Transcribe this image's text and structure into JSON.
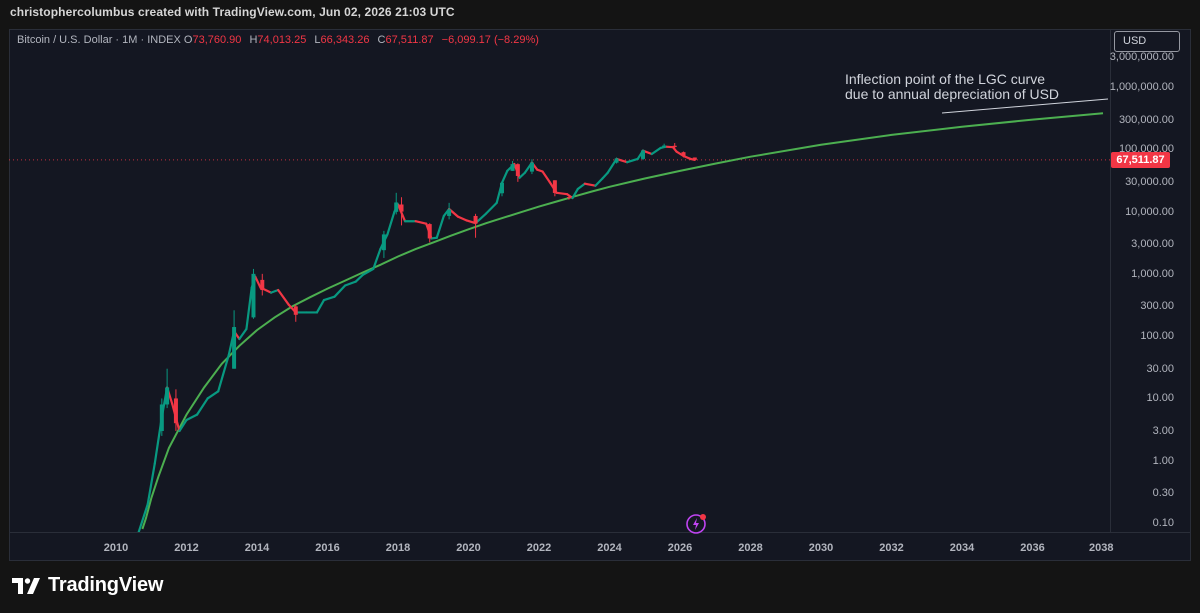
{
  "header": {
    "text": "christophercolumbus created with TradingView.com, Jun 02, 2026 21:03 UTC"
  },
  "legend": {
    "symbol": "Bitcoin / U.S. Dollar · 1M · INDEX",
    "o_label": "O",
    "o_value": "73,760.90",
    "h_label": "H",
    "h_value": "74,013.25",
    "l_label": "L",
    "l_value": "66,343.26",
    "c_label": "C",
    "c_value": "67,511.87",
    "change": "−6,099.17 (−8.29%)"
  },
  "currency_button": "USD",
  "last_price": {
    "label": "67,511.87",
    "value": 67511.87
  },
  "annotation": {
    "line1": "Inflection point of the LGC curve",
    "line2": "due to annual depreciation of USD"
  },
  "footer": {
    "brand": "TradingView"
  },
  "colors": {
    "up": "#089981",
    "down": "#f23645",
    "curve": "#4caf50",
    "background": "#141722",
    "price_line": "#f23645"
  },
  "icons": {
    "lightning": "lightning-icon",
    "logo": "tradingview-logo-icon"
  },
  "chart_data": {
    "type": "line",
    "scale": "log",
    "ylim": [
      0.08,
      6000000
    ],
    "xlim": [
      2008.1,
      2038.0
    ],
    "yticks": [
      {
        "label": "3,000,000.00",
        "value": 3000000
      },
      {
        "label": "1,000,000.00",
        "value": 1000000
      },
      {
        "label": "300,000.00",
        "value": 300000
      },
      {
        "label": "100,000.00",
        "value": 100000
      },
      {
        "label": "30,000.00",
        "value": 30000
      },
      {
        "label": "10,000.00",
        "value": 10000
      },
      {
        "label": "3,000.00",
        "value": 3000
      },
      {
        "label": "1,000.00",
        "value": 1000
      },
      {
        "label": "300.00",
        "value": 300
      },
      {
        "label": "100.00",
        "value": 100
      },
      {
        "label": "30.00",
        "value": 30
      },
      {
        "label": "10.00",
        "value": 10
      },
      {
        "label": "3.00",
        "value": 3
      },
      {
        "label": "1.00",
        "value": 1
      },
      {
        "label": "0.30",
        "value": 0.3
      },
      {
        "label": "0.10",
        "value": 0.1
      }
    ],
    "xticks": [
      {
        "label": "2010",
        "value": 2010
      },
      {
        "label": "2012",
        "value": 2012
      },
      {
        "label": "2014",
        "value": 2014
      },
      {
        "label": "2016",
        "value": 2016
      },
      {
        "label": "2018",
        "value": 2018
      },
      {
        "label": "2020",
        "value": 2020
      },
      {
        "label": "2022",
        "value": 2022
      },
      {
        "label": "2024",
        "value": 2024
      },
      {
        "label": "2026",
        "value": 2026
      },
      {
        "label": "2028",
        "value": 2028
      },
      {
        "label": "2030",
        "value": 2030
      },
      {
        "label": "2032",
        "value": 2032
      },
      {
        "label": "2034",
        "value": 2034
      },
      {
        "label": "2036",
        "value": 2036
      },
      {
        "label": "2038",
        "value": 2038
      }
    ],
    "price_path": [
      [
        2010.6,
        0.06
      ],
      [
        2010.9,
        0.2
      ],
      [
        2011.1,
        0.9
      ],
      [
        2011.3,
        5
      ],
      [
        2011.45,
        15
      ],
      [
        2011.6,
        8
      ],
      [
        2011.8,
        3
      ],
      [
        2012.0,
        4.5
      ],
      [
        2012.3,
        5.5
      ],
      [
        2012.6,
        10
      ],
      [
        2012.9,
        13
      ],
      [
        2013.2,
        50
      ],
      [
        2013.35,
        120
      ],
      [
        2013.5,
        90
      ],
      [
        2013.7,
        130
      ],
      [
        2013.85,
        600
      ],
      [
        2013.95,
        900
      ],
      [
        2014.1,
        600
      ],
      [
        2014.4,
        500
      ],
      [
        2014.6,
        550
      ],
      [
        2014.9,
        320
      ],
      [
        2015.1,
        240
      ],
      [
        2015.4,
        240
      ],
      [
        2015.7,
        240
      ],
      [
        2015.9,
        380
      ],
      [
        2016.2,
        430
      ],
      [
        2016.5,
        650
      ],
      [
        2016.8,
        750
      ],
      [
        2017.0,
        960
      ],
      [
        2017.3,
        1200
      ],
      [
        2017.5,
        2500
      ],
      [
        2017.7,
        4300
      ],
      [
        2017.9,
        10000
      ],
      [
        2018.0,
        13000
      ],
      [
        2018.2,
        7000
      ],
      [
        2018.5,
        7000
      ],
      [
        2018.8,
        6400
      ],
      [
        2018.95,
        3700
      ],
      [
        2019.1,
        3800
      ],
      [
        2019.3,
        8500
      ],
      [
        2019.45,
        11000
      ],
      [
        2019.7,
        8300
      ],
      [
        2019.95,
        7200
      ],
      [
        2020.2,
        6500
      ],
      [
        2020.5,
        9300
      ],
      [
        2020.8,
        13800
      ],
      [
        2020.95,
        29000
      ],
      [
        2021.1,
        45000
      ],
      [
        2021.3,
        58000
      ],
      [
        2021.45,
        35000
      ],
      [
        2021.6,
        42000
      ],
      [
        2021.8,
        61000
      ],
      [
        2021.95,
        47000
      ],
      [
        2022.1,
        44000
      ],
      [
        2022.3,
        30000
      ],
      [
        2022.5,
        20000
      ],
      [
        2022.8,
        19000
      ],
      [
        2022.95,
        16500
      ],
      [
        2023.1,
        23000
      ],
      [
        2023.3,
        28000
      ],
      [
        2023.6,
        26000
      ],
      [
        2023.8,
        34000
      ],
      [
        2023.95,
        42000
      ],
      [
        2024.2,
        70000
      ],
      [
        2024.5,
        62000
      ],
      [
        2024.8,
        70000
      ],
      [
        2024.95,
        95000
      ],
      [
        2025.2,
        84000
      ],
      [
        2025.45,
        105000
      ],
      [
        2025.6,
        110000
      ],
      [
        2025.8,
        108000
      ],
      [
        2025.9,
        92000
      ],
      [
        2026.1,
        78000
      ],
      [
        2026.3,
        70000
      ],
      [
        2026.42,
        67511.87
      ]
    ],
    "lgc_curve": [
      [
        2010.75,
        0.08
      ],
      [
        2010.85,
        0.12
      ],
      [
        2011.0,
        0.25
      ],
      [
        2011.2,
        0.55
      ],
      [
        2011.5,
        1.6
      ],
      [
        2012.0,
        5.5
      ],
      [
        2012.5,
        15
      ],
      [
        2013.0,
        36
      ],
      [
        2013.5,
        70
      ],
      [
        2014.0,
        125
      ],
      [
        2014.5,
        200
      ],
      [
        2015.0,
        300
      ],
      [
        2015.5,
        420
      ],
      [
        2016.0,
        580
      ],
      [
        2016.5,
        780
      ],
      [
        2017.0,
        1050
      ],
      [
        2017.5,
        1400
      ],
      [
        2018.0,
        1900
      ],
      [
        2018.5,
        2500
      ],
      [
        2019.0,
        3200
      ],
      [
        2019.5,
        4100
      ],
      [
        2020.0,
        5200
      ],
      [
        2020.5,
        6500
      ],
      [
        2021.0,
        8000
      ],
      [
        2021.5,
        9800
      ],
      [
        2022.0,
        12000
      ],
      [
        2022.5,
        14500
      ],
      [
        2023.0,
        17500
      ],
      [
        2023.5,
        21000
      ],
      [
        2024.0,
        25000
      ],
      [
        2025.0,
        34000
      ],
      [
        2026.0,
        45000
      ],
      [
        2027.0,
        59000
      ],
      [
        2028.0,
        76000
      ],
      [
        2030.0,
        118000
      ],
      [
        2032.0,
        170000
      ],
      [
        2034.0,
        230000
      ],
      [
        2036.0,
        300000
      ],
      [
        2038.0,
        380000
      ]
    ],
    "candles": [
      {
        "t": 2011.3,
        "o": 3,
        "h": 10,
        "l": 2.5,
        "c": 8,
        "dir": "up"
      },
      {
        "t": 2011.45,
        "o": 8,
        "h": 30,
        "l": 7,
        "c": 15,
        "dir": "up"
      },
      {
        "t": 2011.7,
        "o": 10,
        "h": 14,
        "l": 3,
        "c": 4,
        "dir": "down"
      },
      {
        "t": 2013.35,
        "o": 30,
        "h": 260,
        "l": 30,
        "c": 140,
        "dir": "up"
      },
      {
        "t": 2013.9,
        "o": 200,
        "h": 1200,
        "l": 190,
        "c": 1000,
        "dir": "up"
      },
      {
        "t": 2014.15,
        "o": 800,
        "h": 1000,
        "l": 450,
        "c": 550,
        "dir": "down"
      },
      {
        "t": 2015.1,
        "o": 300,
        "h": 320,
        "l": 170,
        "c": 220,
        "dir": "down"
      },
      {
        "t": 2017.6,
        "o": 2400,
        "h": 4900,
        "l": 1800,
        "c": 4300,
        "dir": "up"
      },
      {
        "t": 2017.95,
        "o": 9900,
        "h": 20000,
        "l": 9000,
        "c": 14000,
        "dir": "up"
      },
      {
        "t": 2018.1,
        "o": 13000,
        "h": 17000,
        "l": 6000,
        "c": 10000,
        "dir": "down"
      },
      {
        "t": 2018.9,
        "o": 6300,
        "h": 6500,
        "l": 3200,
        "c": 3700,
        "dir": "down"
      },
      {
        "t": 2019.45,
        "o": 8500,
        "h": 13800,
        "l": 7500,
        "c": 10800,
        "dir": "up"
      },
      {
        "t": 2020.2,
        "o": 8500,
        "h": 9200,
        "l": 3800,
        "c": 6400,
        "dir": "down"
      },
      {
        "t": 2020.95,
        "o": 19700,
        "h": 29300,
        "l": 17600,
        "c": 29000,
        "dir": "up"
      },
      {
        "t": 2021.25,
        "o": 45000,
        "h": 64800,
        "l": 45000,
        "c": 57800,
        "dir": "up"
      },
      {
        "t": 2021.4,
        "o": 57700,
        "h": 59500,
        "l": 30000,
        "c": 37300,
        "dir": "down"
      },
      {
        "t": 2021.8,
        "o": 43800,
        "h": 69000,
        "l": 40000,
        "c": 61300,
        "dir": "up"
      },
      {
        "t": 2022.45,
        "o": 31800,
        "h": 31900,
        "l": 17600,
        "c": 19900,
        "dir": "down"
      },
      {
        "t": 2022.85,
        "o": 17100,
        "h": 17400,
        "l": 15500,
        "c": 16500,
        "dir": "down"
      },
      {
        "t": 2024.2,
        "o": 61000,
        "h": 73700,
        "l": 59000,
        "c": 71000,
        "dir": "up"
      },
      {
        "t": 2024.95,
        "o": 70000,
        "h": 99800,
        "l": 67000,
        "c": 96000,
        "dir": "up"
      },
      {
        "t": 2025.55,
        "o": 107000,
        "h": 123000,
        "l": 105000,
        "c": 115000,
        "dir": "up"
      },
      {
        "t": 2025.85,
        "o": 114000,
        "h": 126000,
        "l": 100000,
        "c": 109000,
        "dir": "down"
      },
      {
        "t": 2026.1,
        "o": 90000,
        "h": 92000,
        "l": 74000,
        "c": 78000,
        "dir": "down"
      },
      {
        "t": 2026.42,
        "o": 73760.9,
        "h": 74013.25,
        "l": 66343.26,
        "c": 67511.87,
        "dir": "down"
      }
    ]
  }
}
